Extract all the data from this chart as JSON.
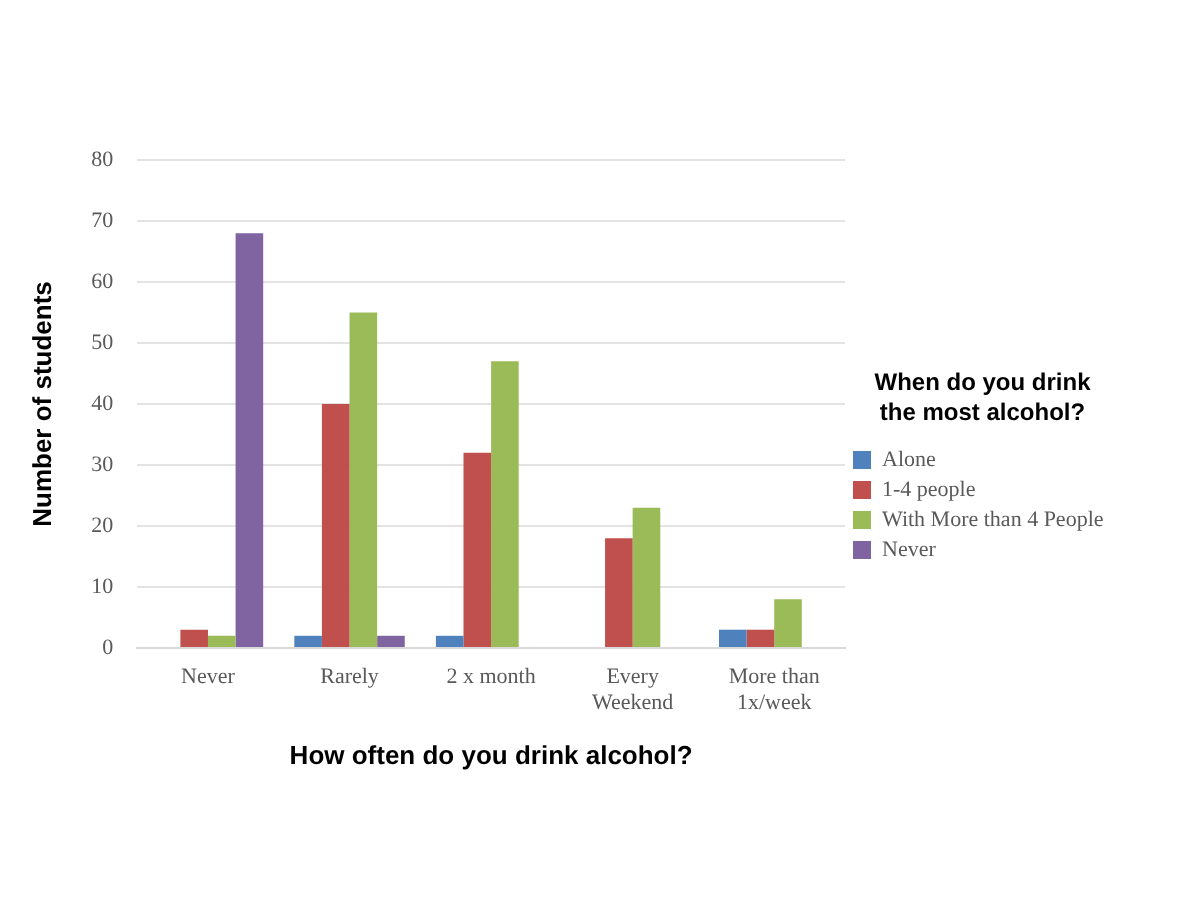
{
  "chart_data": {
    "type": "bar",
    "xlabel": "How often do you drink alcohol?",
    "ylabel": "Number of students",
    "legend_title": "When do you drink the most alcohol?",
    "categories": [
      "Never",
      "Rarely",
      "2 x month",
      "Every Weekend",
      "More than 1x/week"
    ],
    "series": [
      {
        "name": "Alone",
        "color": "#4f81bd",
        "values": [
          0,
          2,
          2,
          0,
          3
        ]
      },
      {
        "name": "1-4 people",
        "color": "#c0504d",
        "values": [
          3,
          40,
          32,
          18,
          3
        ]
      },
      {
        "name": "With More than 4 People",
        "color": "#9bbb59",
        "values": [
          2,
          55,
          47,
          23,
          8
        ]
      },
      {
        "name": "Never",
        "color": "#8064a2",
        "values": [
          68,
          2,
          0,
          0,
          0
        ]
      }
    ],
    "ylim": [
      0,
      80
    ],
    "yticks": [
      0,
      10,
      20,
      30,
      40,
      50,
      60,
      70,
      80
    ],
    "grid": "y",
    "legend": "right"
  }
}
